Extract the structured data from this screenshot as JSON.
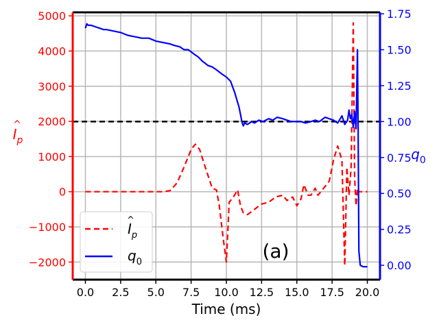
{
  "chart_data": {
    "type": "line",
    "panel_label": "(a)",
    "xlabel": "Time (ms)",
    "ylabel_left": "Î_p",
    "ylabel_right": "q_0",
    "xlim": [
      -0.9,
      20.9
    ],
    "ylim_left": [
      -2500,
      5100
    ],
    "ylim_right": [
      -0.1,
      1.76
    ],
    "x_ticks": [
      "0.0",
      "2.5",
      "5.0",
      "7.5",
      "10.0",
      "12.5",
      "15.0",
      "17.5",
      "20.0"
    ],
    "x_tick_values": [
      0,
      2.5,
      5,
      7.5,
      10,
      12.5,
      15,
      17.5,
      20
    ],
    "left_ticks": [
      "−2000",
      "−1000",
      "0",
      "1000",
      "2000",
      "3000",
      "4000",
      "5000"
    ],
    "left_tick_values": [
      -2000,
      -1000,
      0,
      1000,
      2000,
      3000,
      4000,
      5000
    ],
    "right_ticks": [
      "0.00",
      "0.25",
      "0.50",
      "0.75",
      "1.00",
      "1.25",
      "1.50",
      "1.75"
    ],
    "right_tick_values": [
      0,
      0.25,
      0.5,
      0.75,
      1.0,
      1.25,
      1.5,
      1.75
    ],
    "grid": true,
    "legend_placement": "lower-left",
    "reference_line": {
      "axis": "right",
      "y": 1.0,
      "color": "#000000",
      "style": "dashed"
    },
    "colors": {
      "left_axis": "#ff0000",
      "right_axis": "#0000ff"
    },
    "series": [
      {
        "name": "Î_p",
        "axis": "left",
        "color": "#ff0000",
        "style": "dashed",
        "x": [
          0,
          1,
          2,
          3,
          4,
          5,
          5.5,
          6,
          6.5,
          7,
          7.5,
          7.8,
          8.1,
          8.5,
          9,
          9.3,
          9.5,
          9.8,
          10,
          10.2,
          10.5,
          10.8,
          11,
          11.2,
          11.5,
          12,
          12.5,
          13,
          13.5,
          14,
          14.3,
          14.7,
          15,
          15.3,
          15.5,
          15.8,
          16,
          16.3,
          16.5,
          17,
          17.3,
          17.6,
          17.9,
          18.2,
          18.4,
          18.55,
          18.7,
          18.85,
          19,
          19.1,
          19.2,
          19.3,
          19.4,
          19.6,
          20
        ],
        "values": [
          0,
          0,
          0,
          0,
          0,
          0,
          0,
          30,
          250,
          700,
          1200,
          1350,
          1200,
          700,
          100,
          50,
          -400,
          -1400,
          -2000,
          -300,
          -150,
          50,
          -400,
          -600,
          -650,
          -500,
          -350,
          -300,
          -150,
          -100,
          -250,
          -150,
          -400,
          -200,
          200,
          -100,
          -100,
          100,
          -100,
          150,
          300,
          900,
          1300,
          900,
          -2100,
          700,
          -100,
          700,
          4800,
          400,
          -400,
          100,
          0,
          0,
          0
        ]
      },
      {
        "name": "q_0",
        "axis": "right",
        "color": "#0000ff",
        "style": "solid",
        "x": [
          0,
          0.1,
          0.2,
          0.4,
          0.7,
          1,
          1.3,
          1.5,
          2,
          2.5,
          3,
          3.5,
          4,
          4.5,
          5,
          5.5,
          6,
          6.3,
          6.7,
          7,
          7.3,
          7.7,
          8,
          8.3,
          8.7,
          9,
          9.3,
          9.7,
          10,
          10.3,
          10.6,
          10.9,
          11,
          11.1,
          11.2,
          11.3,
          11.5,
          11.8,
          12,
          12.3,
          12.6,
          13,
          13.3,
          13.6,
          14,
          14.3,
          14.6,
          15,
          15.3,
          15.6,
          16,
          16.3,
          16.6,
          17,
          17.3,
          17.6,
          17.9,
          18.2,
          18.4,
          18.6,
          18.7,
          18.8,
          18.9,
          19,
          19.1,
          19.2,
          19.3,
          19.35,
          19.4,
          19.5,
          19.7,
          20
        ],
        "values": [
          1.65,
          1.68,
          1.67,
          1.67,
          1.66,
          1.65,
          1.64,
          1.64,
          1.63,
          1.62,
          1.6,
          1.59,
          1.58,
          1.58,
          1.56,
          1.55,
          1.54,
          1.53,
          1.52,
          1.5,
          1.5,
          1.47,
          1.45,
          1.42,
          1.39,
          1.38,
          1.36,
          1.33,
          1.31,
          1.28,
          1.2,
          1.1,
          1.05,
          1.0,
          0.97,
          0.99,
          0.98,
          1.0,
          0.99,
          1.01,
          1.0,
          1.02,
          1.01,
          1.03,
          1.02,
          1.01,
          1.0,
          1.0,
          1.0,
          0.99,
          1.0,
          1.01,
          1.0,
          1.03,
          1.02,
          1.01,
          0.99,
          1.04,
          0.98,
          1.01,
          1.08,
          1.02,
          1.05,
          0.96,
          1.07,
          0.95,
          1.5,
          0.95,
          0.1,
          0,
          -0.01,
          -0.01
        ]
      }
    ]
  }
}
